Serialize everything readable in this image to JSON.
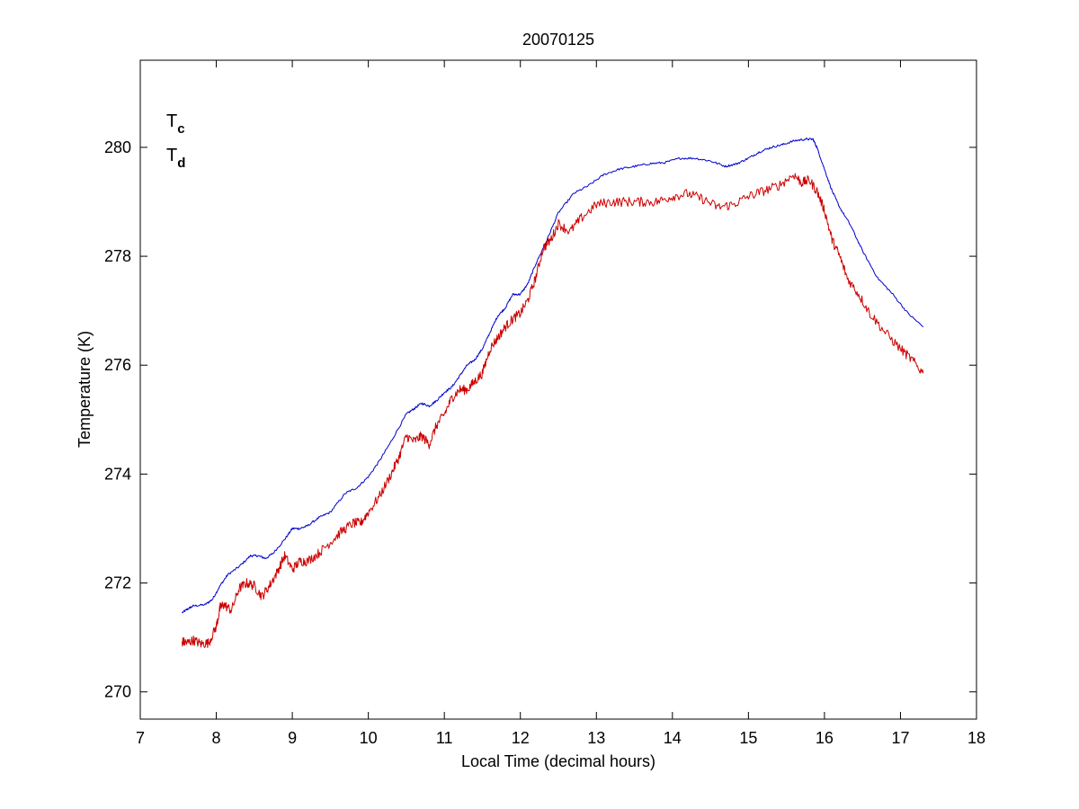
{
  "chart_data": {
    "type": "line",
    "title": "20070125",
    "xlabel": "Local Time (decimal hours)",
    "ylabel": "Temperature (K)",
    "xlim": [
      7,
      18
    ],
    "ylim": [
      269.5,
      281.6
    ],
    "xticks": [
      7,
      8,
      9,
      10,
      11,
      12,
      13,
      14,
      15,
      16,
      17,
      18
    ],
    "yticks": [
      270,
      272,
      274,
      276,
      278,
      280
    ],
    "grid": false,
    "legend": {
      "placement": "top-left",
      "entries": [
        {
          "base": "T",
          "sub": "c",
          "color": "#0000cc"
        },
        {
          "base": "T",
          "sub": "d",
          "color": "#cc0000"
        }
      ]
    },
    "series": [
      {
        "legend_key": "Tc",
        "color": "#0000cc",
        "noise": 0.02,
        "x": [
          7.55,
          7.62,
          7.7,
          7.85,
          7.95,
          8.05,
          8.15,
          8.3,
          8.45,
          8.55,
          8.65,
          8.75,
          8.9,
          9.0,
          9.1,
          9.2,
          9.35,
          9.5,
          9.7,
          9.85,
          10.0,
          10.15,
          10.3,
          10.5,
          10.6,
          10.7,
          10.8,
          10.9,
          11.0,
          11.1,
          11.2,
          11.3,
          11.4,
          11.5,
          11.6,
          11.7,
          11.8,
          11.9,
          12.0,
          12.1,
          12.2,
          12.35,
          12.5,
          12.7,
          12.9,
          13.1,
          13.3,
          13.5,
          13.7,
          13.9,
          14.1,
          14.3,
          14.5,
          14.7,
          14.85,
          15.0,
          15.15,
          15.3,
          15.45,
          15.6,
          15.75,
          15.85,
          15.9,
          16.0,
          16.1,
          16.2,
          16.35,
          16.5,
          16.7,
          16.9,
          17.1,
          17.3
        ],
        "y": [
          271.45,
          271.52,
          271.58,
          271.6,
          271.7,
          271.95,
          272.15,
          272.3,
          272.5,
          272.5,
          272.45,
          272.55,
          272.8,
          273.0,
          273.0,
          273.05,
          273.2,
          273.3,
          273.65,
          273.75,
          273.95,
          274.25,
          274.6,
          275.1,
          275.2,
          275.3,
          275.25,
          275.35,
          275.5,
          275.6,
          275.8,
          276.0,
          276.1,
          276.3,
          276.6,
          276.9,
          277.05,
          277.3,
          277.3,
          277.5,
          277.85,
          278.3,
          278.8,
          279.15,
          279.3,
          279.5,
          279.6,
          279.65,
          279.7,
          279.72,
          279.8,
          279.8,
          279.75,
          279.65,
          279.7,
          279.8,
          279.92,
          280.0,
          280.05,
          280.12,
          280.15,
          280.15,
          280.0,
          279.6,
          279.2,
          278.9,
          278.55,
          278.1,
          277.6,
          277.3,
          276.95,
          276.7
        ]
      },
      {
        "legend_key": "Td",
        "color": "#cc0000",
        "noise": 0.09,
        "x": [
          7.55,
          7.62,
          7.7,
          7.8,
          7.9,
          8.0,
          8.05,
          8.1,
          8.2,
          8.3,
          8.4,
          8.5,
          8.6,
          8.7,
          8.8,
          8.9,
          9.0,
          9.1,
          9.2,
          9.35,
          9.5,
          9.65,
          9.8,
          9.9,
          10.0,
          10.15,
          10.3,
          10.4,
          10.5,
          10.6,
          10.7,
          10.8,
          10.9,
          11.0,
          11.1,
          11.2,
          11.3,
          11.4,
          11.5,
          11.6,
          11.7,
          11.8,
          11.9,
          12.0,
          12.1,
          12.2,
          12.3,
          12.4,
          12.5,
          12.65,
          12.8,
          13.0,
          13.2,
          13.4,
          13.6,
          13.8,
          14.0,
          14.2,
          14.4,
          14.6,
          14.8,
          15.0,
          15.2,
          15.4,
          15.6,
          15.7,
          15.8,
          15.9,
          16.0,
          16.1,
          16.2,
          16.3,
          16.45,
          16.6,
          16.8,
          17.0,
          17.15,
          17.3
        ],
        "y": [
          270.92,
          270.9,
          270.95,
          270.88,
          270.9,
          271.2,
          271.55,
          271.6,
          271.5,
          271.9,
          272.0,
          271.95,
          271.75,
          271.95,
          272.2,
          272.5,
          272.25,
          272.4,
          272.4,
          272.55,
          272.75,
          272.95,
          273.1,
          273.1,
          273.3,
          273.6,
          274.0,
          274.3,
          274.7,
          274.6,
          274.7,
          274.55,
          274.9,
          275.1,
          275.4,
          275.55,
          275.55,
          275.7,
          275.85,
          276.3,
          276.5,
          276.7,
          276.85,
          276.95,
          277.2,
          277.6,
          278.15,
          278.3,
          278.6,
          278.45,
          278.7,
          278.95,
          279.0,
          279.0,
          279.0,
          279.0,
          279.1,
          279.15,
          279.05,
          278.9,
          278.95,
          279.1,
          279.2,
          279.3,
          279.5,
          279.35,
          279.4,
          279.2,
          278.85,
          278.3,
          278.0,
          277.6,
          277.3,
          276.95,
          276.6,
          276.3,
          276.1,
          275.85
        ]
      }
    ]
  }
}
